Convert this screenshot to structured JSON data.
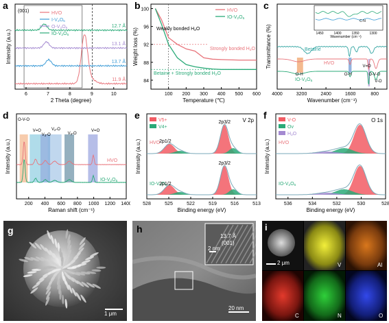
{
  "chart_data": [
    {
      "id": "a",
      "type": "line",
      "letter": "a",
      "xlabel": "2 Theta (degree)",
      "ylabel": "Intensity (a.u.)",
      "xlim": [
        5,
        10
      ],
      "xticks": [
        "6",
        "7",
        "8",
        "9",
        "10"
      ],
      "peak_label": "(001)",
      "legend": [
        "HVO",
        "I-V2O5",
        "O-V2O5",
        "IO-V2O5"
      ],
      "series": [
        {
          "name": "HVO",
          "color": "#e8737a",
          "offset": 3,
          "peak_x": 8.1,
          "peak_h": 1.0,
          "annotation": "11.9 Å"
        },
        {
          "name": "I-V2O5",
          "color": "#3b9bd6",
          "offset": 2,
          "peak_x": 6.5,
          "peak_h": 0.15,
          "annotation": "13.7 Å"
        },
        {
          "name": "O-V2O5",
          "color": "#a48ad1",
          "offset": 1,
          "peak_x": 6.4,
          "peak_h": 0.15,
          "annotation": "13.1 Å"
        },
        {
          "name": "IO-V2O5",
          "color": "#2aaa78",
          "offset": 0,
          "peak_x": 6.3,
          "peak_h": 0.15,
          "annotation": "12.7 Å"
        }
      ]
    },
    {
      "id": "b",
      "type": "line",
      "letter": "b",
      "xlabel": "Temperature (℃)",
      "ylabel": "Weight loss (%)",
      "xlim": [
        0,
        600
      ],
      "ylim": [
        82,
        101
      ],
      "xticks": [
        "100",
        "200",
        "300",
        "400",
        "500",
        "600"
      ],
      "yticks": [
        "84",
        "88",
        "92",
        "96",
        "100"
      ],
      "legend": [
        "HVO",
        "IO-V2O5"
      ],
      "annotations": [
        "Weakly bonded H2O",
        "Strongly bonded H2O",
        "Betaine + Strongly bonded H2O"
      ],
      "series": [
        {
          "name": "HVO",
          "color": "#e8737a",
          "x": [
            25,
            60,
            100,
            150,
            200,
            250,
            300,
            350,
            400,
            500,
            600
          ],
          "y": [
            100,
            97.5,
            93.5,
            92,
            91,
            90.5,
            89,
            88.7,
            88.6,
            88.5,
            88.5
          ]
        },
        {
          "name": "IO-V2O5",
          "color": "#2aaa78",
          "x": [
            25,
            60,
            100,
            150,
            200,
            250,
            300,
            350,
            400,
            500,
            600
          ],
          "y": [
            100,
            96.5,
            92,
            89,
            87.5,
            87,
            86.7,
            86.5,
            86.4,
            86.4,
            86.4
          ]
        }
      ]
    },
    {
      "id": "c",
      "type": "line",
      "letter": "c",
      "xlabel": "Wavenumber (cm⁻¹)",
      "ylabel": "Transmittance (%)",
      "xticks": [
        "4000",
        "3200",
        "2400",
        "1600",
        "800"
      ],
      "series_labels": [
        "Betaine",
        "HVO",
        "IO-V2O5"
      ],
      "band_labels": [
        "O-H",
        "O-H",
        "V=O",
        "O-V-O",
        "V-O"
      ],
      "inset": {
        "xlabel": "Wavenumber (cm⁻¹)",
        "xticks": [
          "1450",
          "1400",
          "1350",
          "1300"
        ],
        "label": "C-N"
      }
    },
    {
      "id": "d",
      "type": "line",
      "letter": "d",
      "xlabel": "Raman shift (cm⁻¹)",
      "ylabel": "Intensity (a.u.)",
      "xticks": [
        "200",
        "400",
        "600",
        "800",
        "1000",
        "1200",
        "1400"
      ],
      "band_labels": [
        "O-V-O",
        "V=O",
        "V3-O",
        "V2-O",
        "V3-O",
        "V=O"
      ],
      "series_labels": [
        "HVO",
        "IO-V2O5"
      ]
    },
    {
      "id": "e",
      "type": "line",
      "letter": "e",
      "title": "V 2p",
      "xlabel": "Binding energy (eV)",
      "ylabel": "Intensity (a.u.)",
      "xticks": [
        "528",
        "525",
        "522",
        "519",
        "516",
        "513"
      ],
      "legend": [
        "V5+",
        "V4+"
      ],
      "series_labels": [
        "HVO",
        "IO-V2O5"
      ],
      "peak_labels": [
        "2p3/2",
        "2p1/2"
      ]
    },
    {
      "id": "f",
      "type": "line",
      "letter": "f",
      "title": "O 1s",
      "xlabel": "Binding energy (eV)",
      "ylabel": "Intensity (a.u.)",
      "xticks": [
        "536",
        "534",
        "532",
        "530",
        "528"
      ],
      "legend": [
        "V-O",
        "Ov",
        "H2O"
      ],
      "series_labels": [
        "HVO",
        "IO-V2O5"
      ]
    }
  ],
  "micrographs": {
    "g": {
      "letter": "g",
      "scale": "1 μm"
    },
    "h": {
      "letter": "h",
      "scale": "20 nm",
      "inset_scale": "2 nm",
      "inset_label": "13.7 Å",
      "inset_sub": "(001)"
    },
    "i": {
      "letter": "i",
      "scale": "2 μm",
      "maps": [
        "V",
        "Al",
        "C",
        "N",
        "O"
      ]
    }
  }
}
